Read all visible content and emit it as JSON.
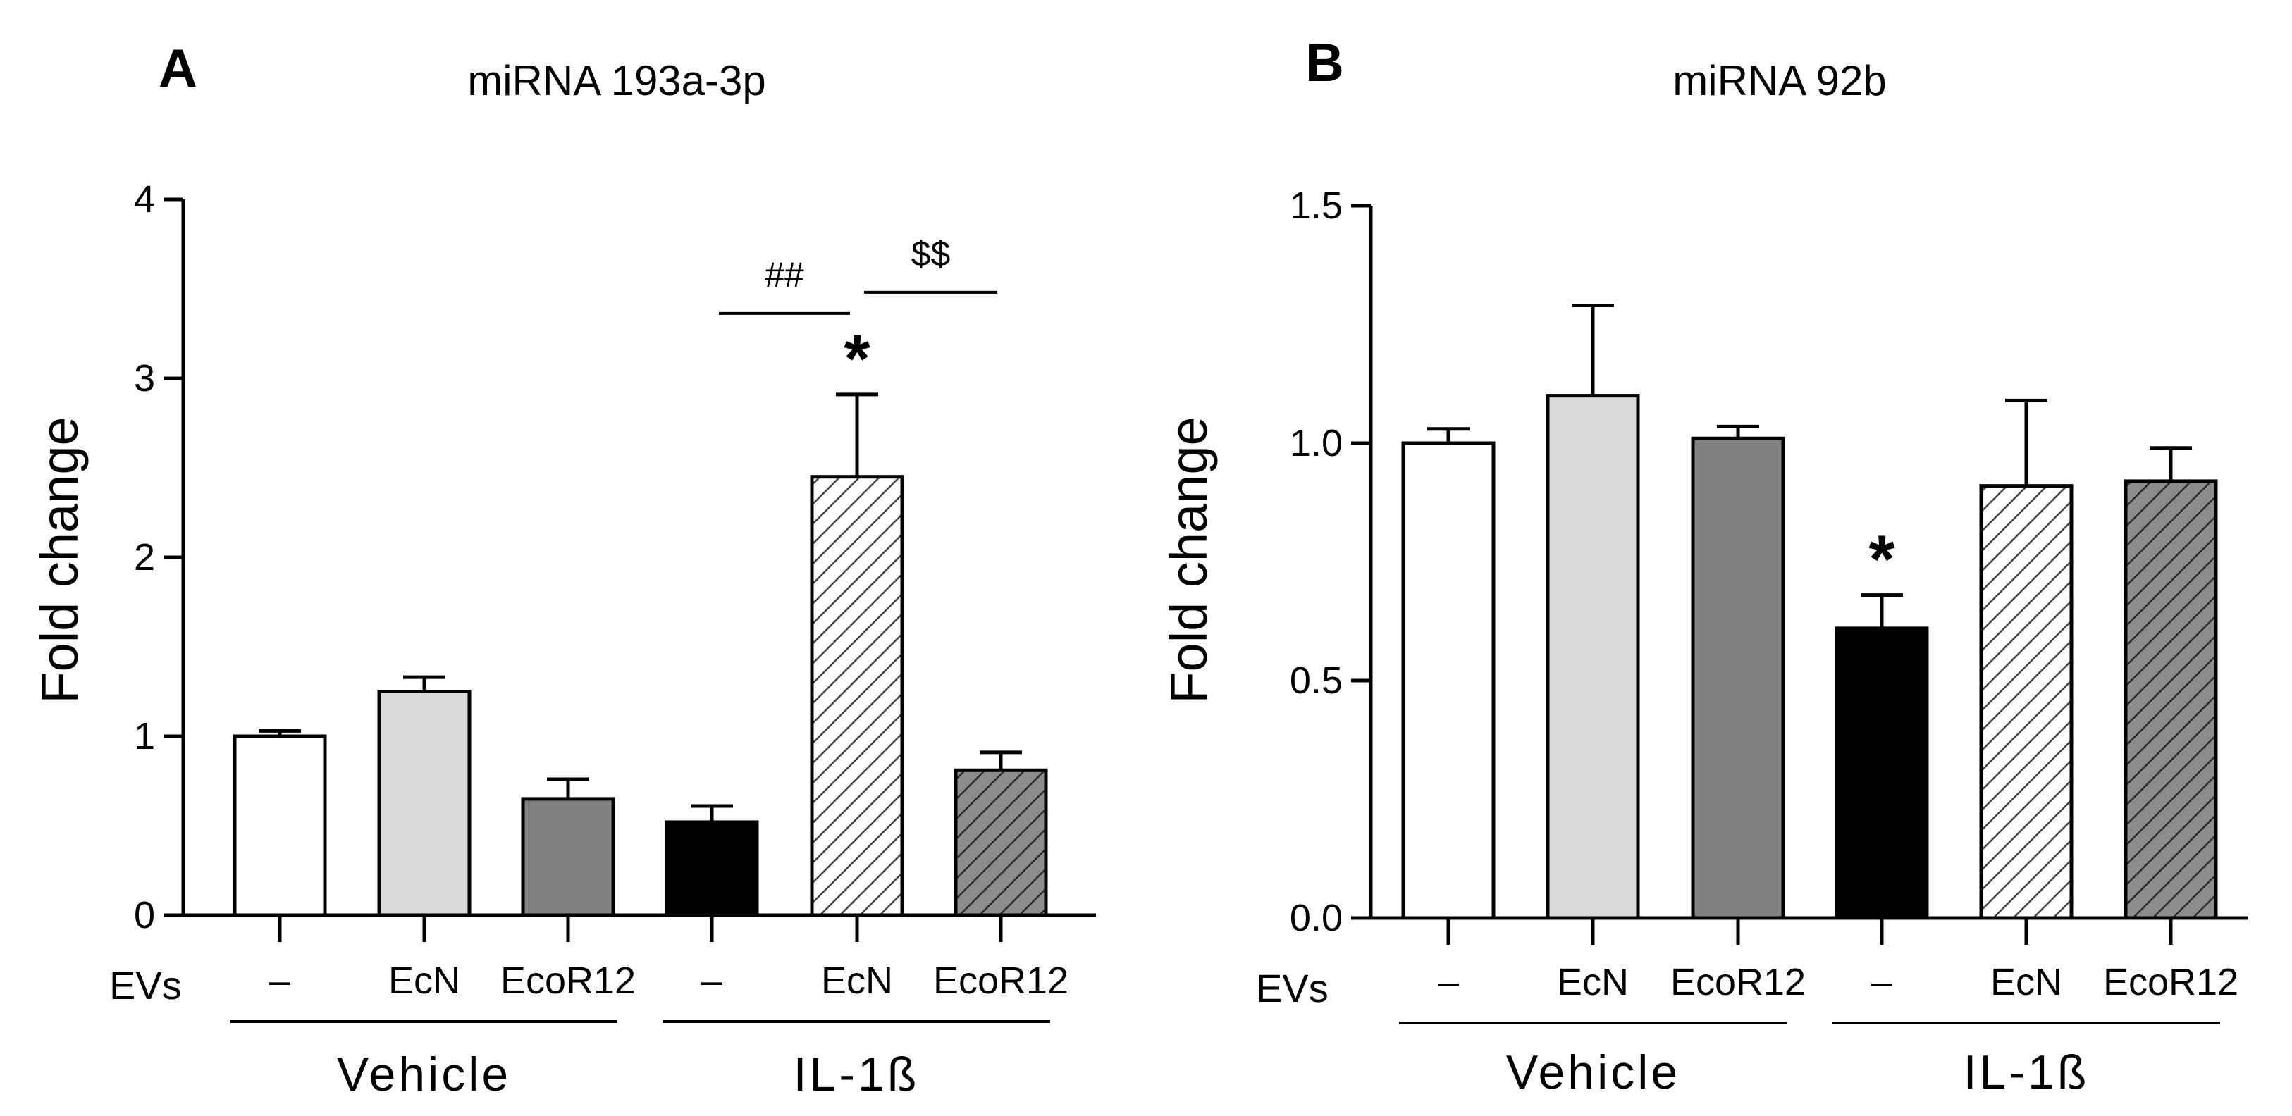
{
  "chart_data": [
    {
      "type": "bar",
      "panel": "A",
      "title": "miRNA 193a-3p",
      "ylabel": "Fold change",
      "ylim": [
        0,
        4
      ],
      "yticks": [
        0,
        1,
        2,
        3,
        4
      ],
      "ytick_labels": [
        "0",
        "1",
        "2",
        "3",
        "4"
      ],
      "row_label": "EVs",
      "categories": [
        "–",
        "EcN",
        "EcoR12",
        "–",
        "EcN",
        "EcoR12"
      ],
      "groups": [
        {
          "label": "Vehicle",
          "range": [
            0,
            2
          ]
        },
        {
          "label": "IL-1ß",
          "range": [
            3,
            5
          ]
        }
      ],
      "values": [
        1.0,
        1.25,
        0.65,
        0.52,
        2.45,
        0.81
      ],
      "errors": [
        0.03,
        0.08,
        0.11,
        0.09,
        0.46,
        0.1
      ],
      "fills": [
        "white",
        "#d9d9d9",
        "#808080",
        "#000000",
        "hatch-light",
        "hatch-dark"
      ],
      "significance": [
        {
          "index": 4,
          "label": "*"
        }
      ],
      "brackets": [
        {
          "from": 3,
          "to": 4,
          "label": "##"
        },
        {
          "from": 4,
          "to": 5,
          "label": "$$"
        }
      ]
    },
    {
      "type": "bar",
      "panel": "B",
      "title": "miRNA 92b",
      "ylabel": "Fold change",
      "ylim": [
        0,
        1.5
      ],
      "yticks": [
        0,
        0.5,
        1.0,
        1.5
      ],
      "ytick_labels": [
        "0.0",
        "0.5",
        "1.0",
        "1.5"
      ],
      "row_label": "EVs",
      "categories": [
        "–",
        "EcN",
        "EcoR12",
        "–",
        "EcN",
        "EcoR12"
      ],
      "groups": [
        {
          "label": "Vehicle",
          "range": [
            0,
            2
          ]
        },
        {
          "label": "IL-1ß",
          "range": [
            3,
            5
          ]
        }
      ],
      "values": [
        1.0,
        1.1,
        1.01,
        0.61,
        0.91,
        0.92
      ],
      "errors": [
        0.03,
        0.19,
        0.025,
        0.07,
        0.18,
        0.07
      ],
      "fills": [
        "white",
        "#d9d9d9",
        "#808080",
        "#000000",
        "hatch-light",
        "hatch-dark"
      ],
      "significance": [
        {
          "index": 3,
          "label": "*"
        }
      ],
      "brackets": []
    }
  ]
}
